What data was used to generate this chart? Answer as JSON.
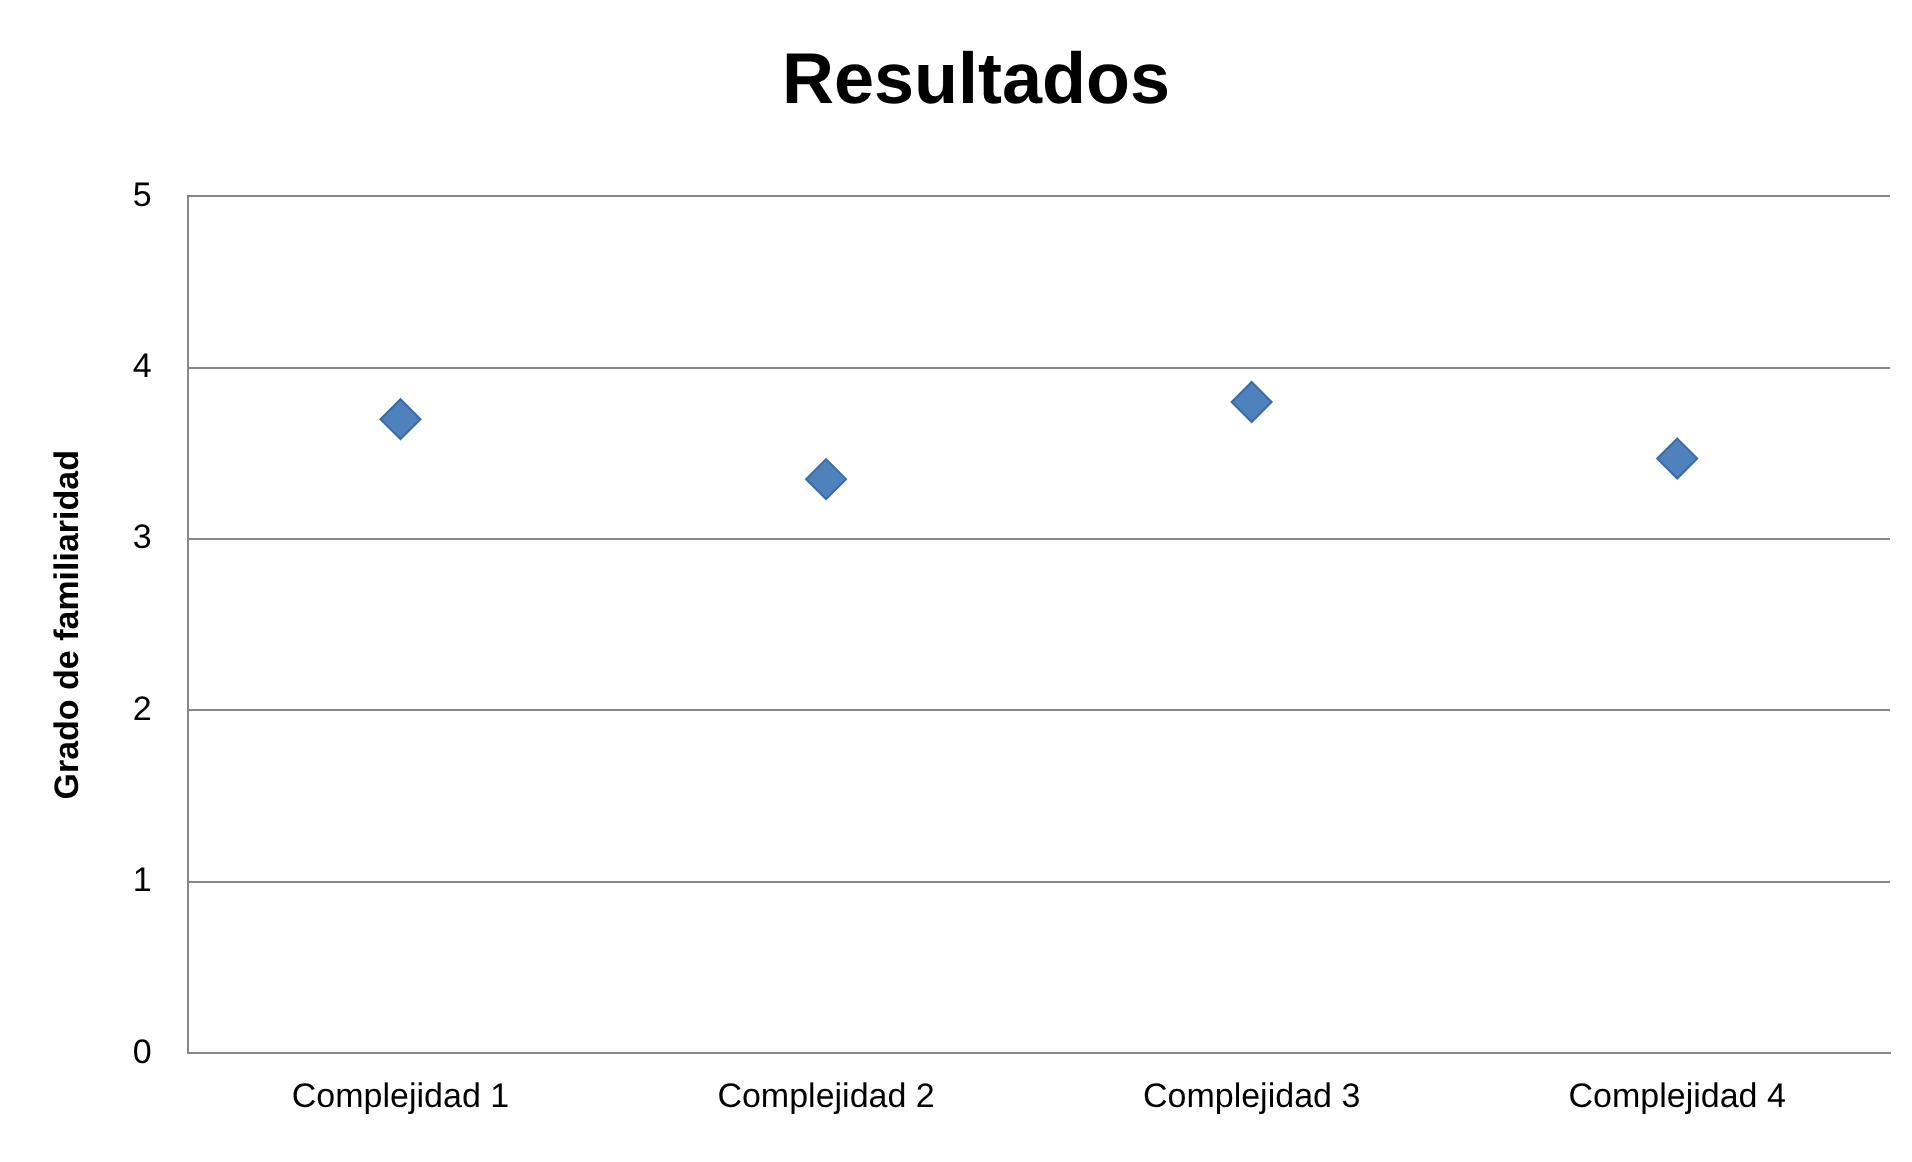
{
  "chart_data": {
    "type": "scatter",
    "title": "Resultados",
    "ylabel": "Grado de familiaridad",
    "categories": [
      "Complejidad 1",
      "Complejidad 2",
      "Complejidad 3",
      "Complejidad 4"
    ],
    "values": [
      3.7,
      3.35,
      3.8,
      3.47
    ],
    "color": "#4f81bd",
    "ylim": [
      0,
      5
    ],
    "yticks": [
      0,
      1,
      2,
      3,
      4,
      5
    ],
    "grid": "y",
    "legend": false,
    "marker": "diamond"
  }
}
